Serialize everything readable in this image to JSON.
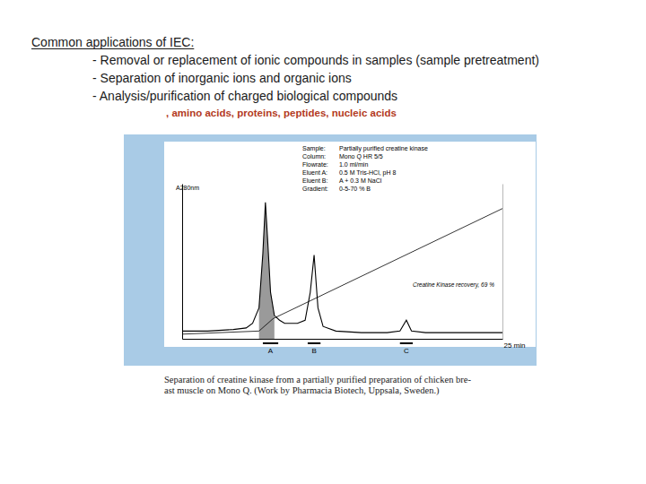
{
  "heading": "Common applications of IEC:",
  "bullets": [
    "- Removal or replacement of ionic compounds in samples (sample pretreatment)",
    "- Separation of inorganic ions and organic ions",
    "- Analysis/purification of charged biological compounds"
  ],
  "sub_bullet": ", amino acids, proteins, peptides, nucleic acids",
  "caption": [
    "Separation of creatine kinase from a partially purified preparation of chicken bre-",
    "ast muscle on Mono Q. (Work by Pharmacia Biotech, Uppsala, Sweden.)"
  ],
  "chart_data": {
    "type": "line",
    "y_label": "A280nm",
    "xlim": [
      0,
      25
    ],
    "xticks": [
      {
        "value": 25,
        "label": "25 min"
      }
    ],
    "ylim": [
      0,
      1
    ],
    "yticks": [],
    "y2lim": [
      0,
      100
    ],
    "y2ticks": [],
    "tick_labels": "x",
    "grid": false,
    "method_info": [
      [
        "Sample:",
        "Partially purified creatine kinase"
      ],
      [
        "Column:",
        "Mono Q HR 5/5"
      ],
      [
        "Flowrate:",
        "1.0 ml/min"
      ],
      [
        "Eluent A:",
        "0.5 M Tris-HCl, pH 8"
      ],
      [
        "Eluent B:",
        "A + 0.3 M NaCl"
      ],
      [
        "Gradient:",
        "0-5-70 % B"
      ]
    ],
    "annotations": [
      "Creatine Kinase recovery, 69 %"
    ],
    "series": [
      {
        "type": "area",
        "color": "#9a9a9a",
        "x": [
          6.0,
          6.3,
          6.5,
          6.7,
          6.9,
          7.2
        ],
        "values": [
          0.2,
          0.55,
          0.88,
          0.6,
          0.3,
          0.15
        ]
      },
      {
        "type": "line",
        "color": "#000000",
        "x": [
          0,
          2,
          4,
          5,
          5.5,
          6.0,
          6.3,
          6.5,
          6.7,
          6.9,
          7.2,
          7.6,
          8,
          9,
          9.6,
          10.0,
          10.3,
          10.6,
          11,
          12,
          14,
          16,
          17,
          17.5,
          17.9,
          19,
          22,
          25
        ],
        "values": [
          0.05,
          0.05,
          0.06,
          0.07,
          0.1,
          0.2,
          0.55,
          0.88,
          0.6,
          0.3,
          0.15,
          0.12,
          0.1,
          0.1,
          0.12,
          0.3,
          0.54,
          0.2,
          0.08,
          0.05,
          0.04,
          0.04,
          0.05,
          0.12,
          0.05,
          0.04,
          0.04,
          0.04
        ]
      },
      {
        "type": "line",
        "color": "#000000",
        "axis": "y2",
        "x": [
          0,
          6,
          7.1,
          25
        ],
        "values": [
          3,
          5,
          13,
          84
        ]
      }
    ],
    "fractions": {
      "labels": [
        "A",
        "B",
        "C"
      ],
      "start": [
        6.3,
        9.8,
        17.0
      ],
      "end": [
        7.5,
        10.8,
        18.0
      ]
    }
  }
}
